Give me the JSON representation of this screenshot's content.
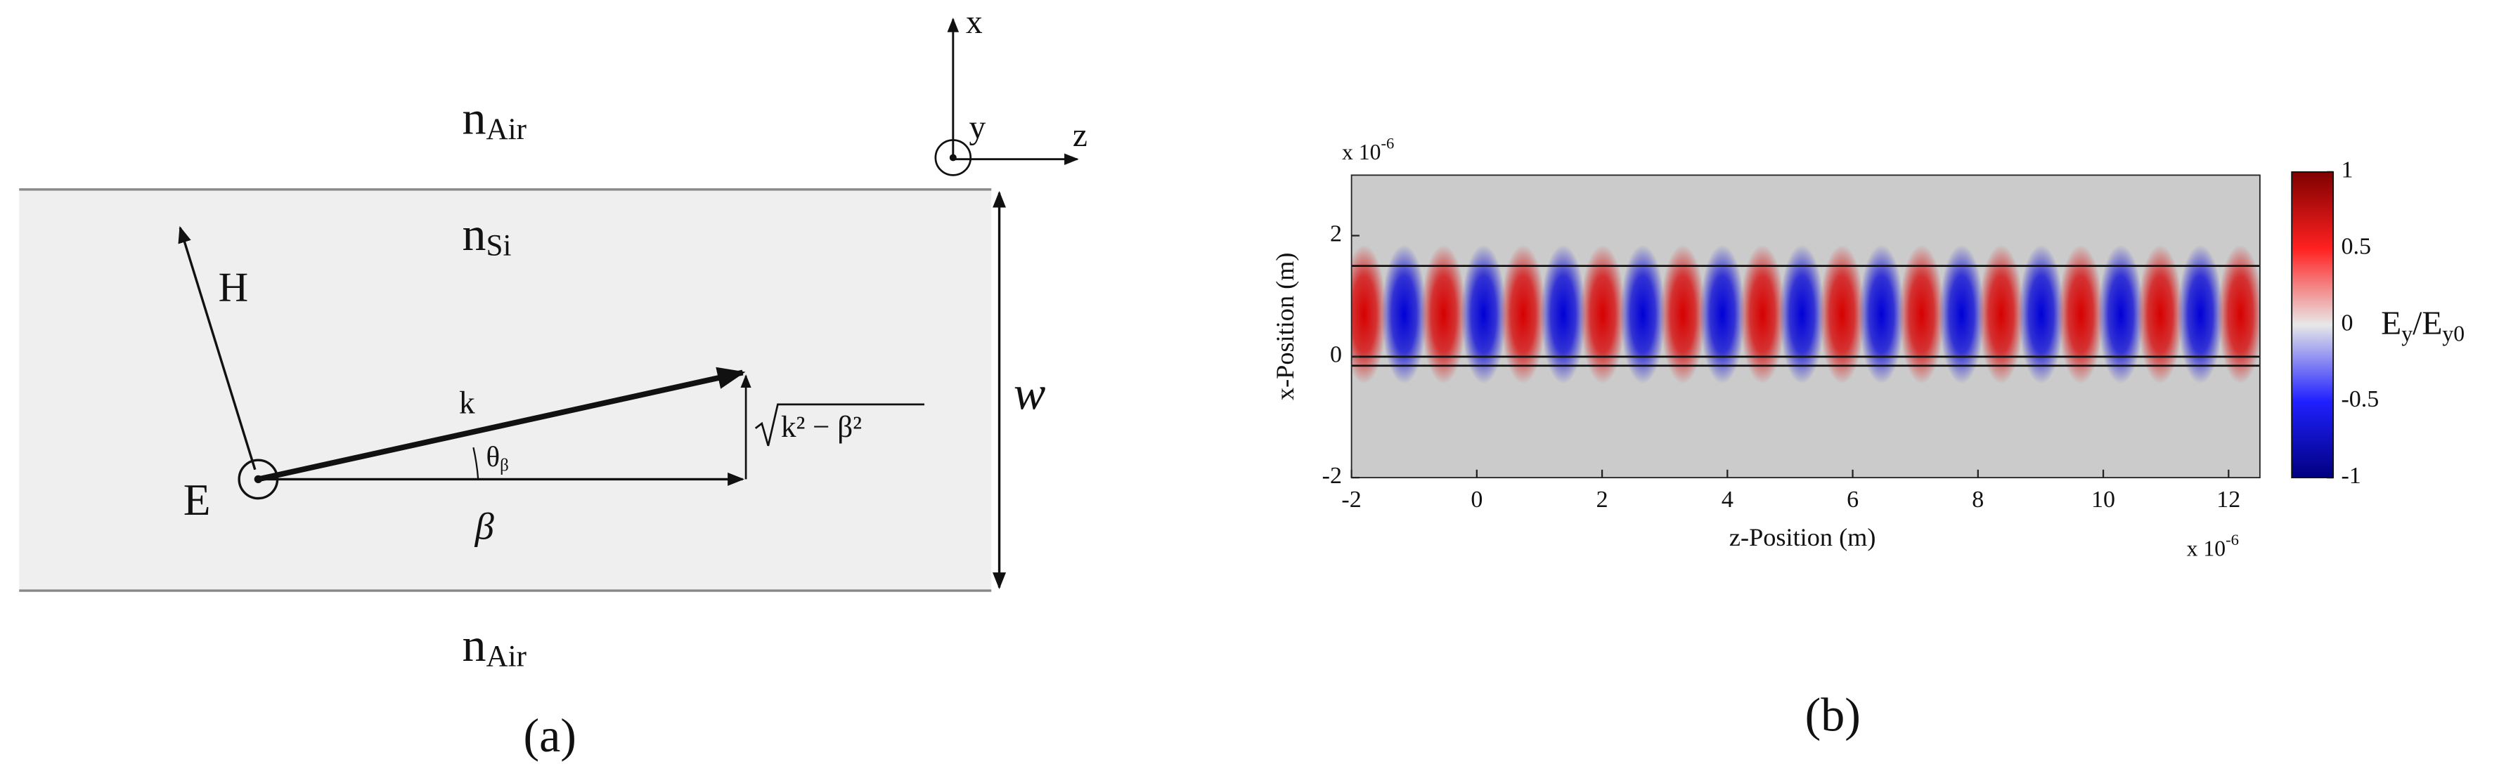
{
  "panel_a": {
    "n_air_top": {
      "base": "n",
      "sub": "Air"
    },
    "n_si": {
      "base": "n",
      "sub": "Si"
    },
    "n_air_bottom": {
      "base": "n",
      "sub": "Air"
    },
    "h_label": "H",
    "e_label": "E",
    "k_label": "k",
    "theta_label": {
      "base": "θ",
      "sub": "β"
    },
    "beta_label": "β",
    "sqrt_label": "k² − β²",
    "w_label": "w",
    "axis_x": "x",
    "axis_y": "y",
    "axis_z": "z",
    "caption": "(a)"
  },
  "panel_b": {
    "type": "heatmap",
    "xlabel": "z-Position (m)",
    "ylabel": "x-Position (m)",
    "x_multiplier": {
      "base": "x 10",
      "sup": "-6"
    },
    "y_multiplier": {
      "base": "x 10",
      "sup": "-6"
    },
    "xlim": [
      -2,
      12.5
    ],
    "ylim": [
      -2,
      3
    ],
    "xticks": [
      -2,
      0,
      2,
      4,
      6,
      8,
      10,
      12
    ],
    "yticks": [
      -2,
      0,
      2
    ],
    "core_lines": [
      1.5,
      0,
      -0.15
    ],
    "field_center": 0.7,
    "stripes": {
      "z": [
        -1.8,
        -1.16,
        -0.53,
        0.11,
        0.74,
        1.38,
        2.01,
        2.65,
        3.29,
        3.92,
        4.56,
        5.19,
        5.83,
        6.46,
        7.1,
        7.74,
        8.37,
        9.01,
        9.64,
        10.28,
        10.91,
        11.55,
        12.19
      ],
      "values": [
        1,
        -1,
        1,
        -1,
        1,
        -1,
        1,
        -1,
        1,
        -1,
        1,
        -1,
        1,
        -1,
        1,
        -1,
        1,
        -1,
        1,
        -1,
        1,
        -1,
        1
      ]
    },
    "colorbar": {
      "label": {
        "base": "E",
        "sub": "y",
        "mid": "/E",
        "sub2": "y0"
      },
      "lim": [
        -1,
        1
      ],
      "ticks": [
        1,
        0.5,
        0,
        -0.5,
        -1
      ]
    },
    "caption": "(b)"
  }
}
